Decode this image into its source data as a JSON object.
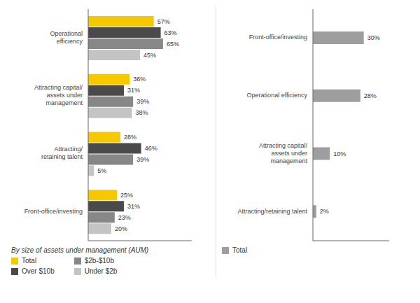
{
  "chart_data": [
    {
      "type": "bar",
      "orientation": "horizontal",
      "categories": [
        "Operational\nefficiency",
        "Attracting capital/\nassets under\nmanagement",
        "Attracting/\nretaining talent",
        "Front-office/investing"
      ],
      "series": [
        {
          "name": "Total",
          "color": "#f5c800",
          "values": [
            57,
            36,
            28,
            25
          ],
          "value_labels": [
            "57%",
            "36%",
            "28%",
            "25%"
          ]
        },
        {
          "name": "Over $10b",
          "color": "#4a4a4a",
          "values": [
            63,
            31,
            46,
            31
          ],
          "value_labels": [
            "63%",
            "31%",
            "46%",
            "31%"
          ]
        },
        {
          "name": "$2b-$10b",
          "color": "#878787",
          "values": [
            65,
            39,
            39,
            23
          ],
          "value_labels": [
            "65%",
            "39%",
            "39%",
            "23%"
          ]
        },
        {
          "name": "Under $2b",
          "color": "#c4c4c4",
          "values": [
            45,
            38,
            5,
            20
          ],
          "value_labels": [
            "45%",
            "38%",
            "5%",
            "20%"
          ]
        }
      ],
      "xlim": [
        0,
        90
      ],
      "data_labels": true,
      "tick_labels": "y",
      "legend": "bottom",
      "legend_title": "By size of assets under management (AUM)"
    },
    {
      "type": "bar",
      "orientation": "horizontal",
      "categories": [
        "Front-office/investing",
        "Operational efficiency",
        "Attracting capital/\nassets under\nmanagement",
        "Attracting/retaining talent"
      ],
      "series": [
        {
          "name": "Total",
          "color": "#9e9e9e",
          "values": [
            30,
            28,
            10,
            2
          ],
          "value_labels": [
            "30%",
            "28%",
            "10%",
            "2%"
          ]
        }
      ],
      "xlim": [
        0,
        45
      ],
      "data_labels": true,
      "tick_labels": "y",
      "legend": "bottom"
    }
  ]
}
